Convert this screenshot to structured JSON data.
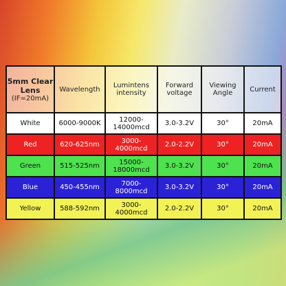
{
  "table": {
    "header": [
      "5mm Clear Lens",
      "(IF=20mA)",
      "Wavelength",
      "Lumintens intensity",
      "Forward voltage",
      "Viewing Angle",
      "Current"
    ],
    "rows": [
      [
        "White",
        "6000-9000K",
        "12000-14000mcd",
        "3.0-3.2V",
        "30°",
        "20mA"
      ],
      [
        "Red",
        "620-625nm",
        "3000-4000mcd",
        "2.0-2.2V",
        "30°",
        "20mA"
      ],
      [
        "Green",
        "515-525nm",
        "15000-18000mcd",
        "3.0-3.2V",
        "30°",
        "20mA"
      ],
      [
        "Blue",
        "450-455nm",
        "7000-8000mcd",
        "3.0-3.2V",
        "30°",
        "20mA"
      ],
      [
        "Yellow",
        "588-592nm",
        "3000-4000mcd",
        "2.0-2.2V",
        "30°",
        "20mA"
      ]
    ]
  }
}
